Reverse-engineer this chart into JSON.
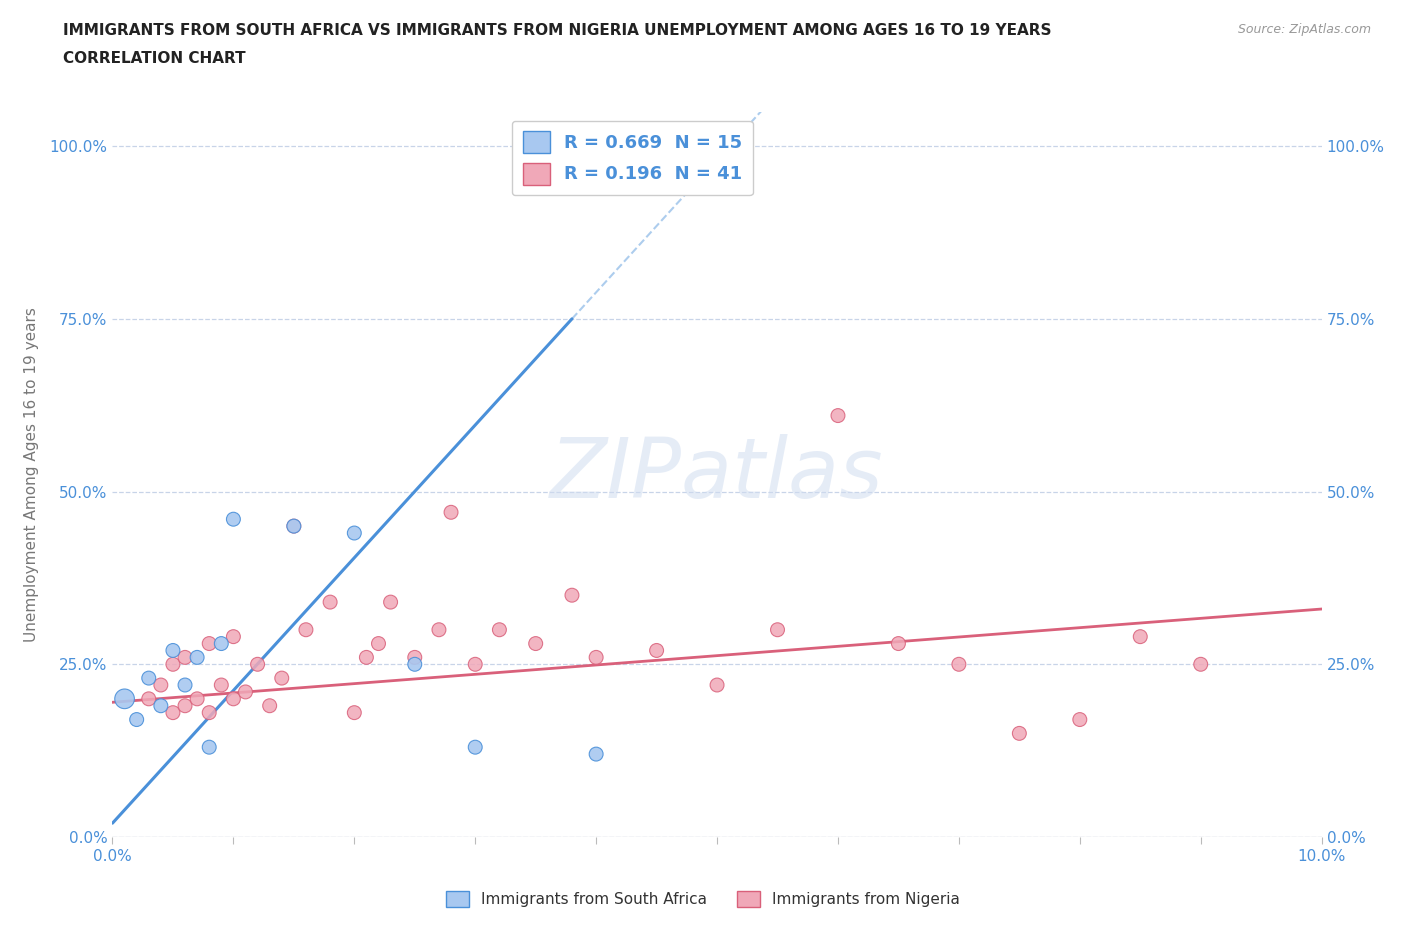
{
  "title_line1": "IMMIGRANTS FROM SOUTH AFRICA VS IMMIGRANTS FROM NIGERIA UNEMPLOYMENT AMONG AGES 16 TO 19 YEARS",
  "title_line2": "CORRELATION CHART",
  "source": "Source: ZipAtlas.com",
  "ylabel": "Unemployment Among Ages 16 to 19 years",
  "watermark": "ZIPatlas",
  "r_sa": 0.669,
  "n_sa": 15,
  "r_ng": 0.196,
  "n_ng": 41,
  "color_sa": "#a8c8f0",
  "color_sa_line": "#4a90d9",
  "color_ng": "#f0a8b8",
  "color_ng_line": "#d9607a",
  "xlim": [
    0.0,
    0.1
  ],
  "ylim": [
    0.0,
    1.05
  ],
  "ytick_vals": [
    0.0,
    0.25,
    0.5,
    0.75,
    1.0
  ],
  "ytick_labels": [
    "0.0%",
    "25.0%",
    "50.0%",
    "75.0%",
    "100.0%"
  ],
  "xtick_vals": [
    0.0,
    0.01,
    0.02,
    0.03,
    0.04,
    0.05,
    0.06,
    0.07,
    0.08,
    0.09,
    0.1
  ],
  "south_africa_x": [
    0.001,
    0.002,
    0.003,
    0.004,
    0.005,
    0.006,
    0.007,
    0.008,
    0.009,
    0.01,
    0.015,
    0.02,
    0.025,
    0.03,
    0.04
  ],
  "south_africa_y": [
    0.2,
    0.17,
    0.23,
    0.19,
    0.27,
    0.22,
    0.26,
    0.13,
    0.28,
    0.46,
    0.45,
    0.44,
    0.25,
    0.13,
    0.12
  ],
  "south_africa_sizes": [
    200,
    100,
    100,
    100,
    100,
    100,
    100,
    100,
    100,
    100,
    100,
    100,
    100,
    100,
    100
  ],
  "nigeria_x": [
    0.003,
    0.004,
    0.005,
    0.005,
    0.006,
    0.006,
    0.007,
    0.008,
    0.008,
    0.009,
    0.01,
    0.01,
    0.011,
    0.012,
    0.013,
    0.014,
    0.015,
    0.016,
    0.018,
    0.02,
    0.021,
    0.022,
    0.023,
    0.025,
    0.027,
    0.028,
    0.03,
    0.032,
    0.035,
    0.038,
    0.04,
    0.045,
    0.05,
    0.055,
    0.06,
    0.065,
    0.07,
    0.075,
    0.08,
    0.085,
    0.09
  ],
  "nigeria_y": [
    0.2,
    0.22,
    0.18,
    0.25,
    0.19,
    0.26,
    0.2,
    0.18,
    0.28,
    0.22,
    0.2,
    0.29,
    0.21,
    0.25,
    0.19,
    0.23,
    0.45,
    0.3,
    0.34,
    0.18,
    0.26,
    0.28,
    0.34,
    0.26,
    0.3,
    0.47,
    0.25,
    0.3,
    0.28,
    0.35,
    0.26,
    0.27,
    0.22,
    0.3,
    0.61,
    0.28,
    0.25,
    0.15,
    0.17,
    0.29,
    0.25
  ],
  "nigeria_sizes": [
    100,
    100,
    100,
    100,
    100,
    100,
    100,
    100,
    100,
    100,
    100,
    100,
    100,
    100,
    100,
    100,
    100,
    100,
    100,
    100,
    100,
    100,
    100,
    100,
    100,
    100,
    100,
    100,
    100,
    100,
    100,
    100,
    100,
    100,
    100,
    100,
    100,
    100,
    100,
    100,
    100
  ],
  "sa_line_x0": 0.0,
  "sa_line_y0": 0.02,
  "sa_line_x1": 0.038,
  "sa_line_y1": 0.75,
  "sa_line_solid_end": 0.038,
  "sa_line_dash_end": 0.1,
  "ng_line_x0": 0.0,
  "ng_line_y0": 0.195,
  "ng_line_x1": 0.1,
  "ng_line_y1": 0.33,
  "legend_sa_label": "Immigrants from South Africa",
  "legend_ng_label": "Immigrants from Nigeria",
  "background_color": "#ffffff",
  "grid_color": "#c8d4e8",
  "title_color": "#222222",
  "axis_color": "#4a90d9",
  "ylabel_color": "#777777"
}
